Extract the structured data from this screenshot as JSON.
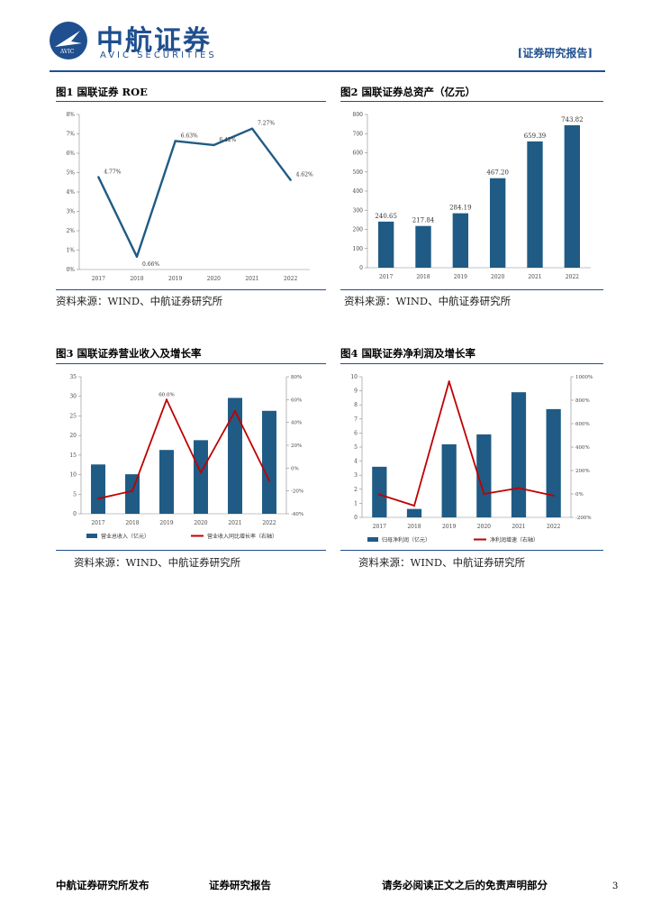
{
  "header": {
    "logo_cn": "中航证券",
    "logo_en": "AVIC SECURITIES",
    "logo_mark_text": "AVIC",
    "report_tag": "[证券研究报告]"
  },
  "figures": [
    {
      "title": "图1  国联证券 ROE",
      "source": "资料来源：WIND、中航证券研究所"
    },
    {
      "title": "图2  国联证券总资产（亿元）",
      "source": "资料来源：WIND、中航证券研究所"
    },
    {
      "title": "图3  国联证券营业收入及增长率",
      "source": "资料来源：WIND、中航证券研究所"
    },
    {
      "title": "图4  国联证券净利润及增长率",
      "source": "资料来源：WIND、中航证券研究所"
    }
  ],
  "chart_data": [
    {
      "type": "line",
      "x": [
        "2017",
        "2018",
        "2019",
        "2020",
        "2021",
        "2022"
      ],
      "series": [
        {
          "values": [
            4.77,
            0.66,
            6.63,
            6.42,
            7.27,
            4.62
          ],
          "labels": [
            "4.77%",
            "0.66%",
            "6.63%",
            "6.42%",
            "7.27%",
            "4.62%"
          ]
        }
      ],
      "ylim": [
        0,
        8
      ],
      "yticks": [
        "0%",
        "1%",
        "2%",
        "3%",
        "4%",
        "5%",
        "6%",
        "7%",
        "8%"
      ],
      "color": "#1f5b84"
    },
    {
      "type": "bar",
      "categories": [
        "2017",
        "2018",
        "2019",
        "2020",
        "2021",
        "2022"
      ],
      "values": [
        240.65,
        217.84,
        284.19,
        467.2,
        659.39,
        743.82
      ],
      "labels": [
        "240.65",
        "217.84",
        "284.19",
        "467.20",
        "659.39",
        "743.82"
      ],
      "ylim": [
        0,
        800
      ],
      "yticks": [
        "0",
        "100",
        "200",
        "300",
        "400",
        "500",
        "600",
        "700",
        "800"
      ],
      "color": "#1f5b84"
    },
    {
      "type": "bar",
      "categories": [
        "2017",
        "2018",
        "2019",
        "2020",
        "2021",
        "2022"
      ],
      "series": [
        {
          "name": "营业总收入（亿元）",
          "type": "bar",
          "axis": "left",
          "values": [
            12.6,
            10.1,
            16.3,
            18.8,
            29.6,
            26.3
          ],
          "color": "#1f5b84"
        },
        {
          "name": "营业收入同比增长率（右轴）",
          "type": "line",
          "axis": "right",
          "values": [
            -26.7,
            -20.0,
            60.0,
            -4.0,
            50.0,
            -11.0
          ],
          "color": "#c00000"
        }
      ],
      "labels": [
        "",
        "",
        "60.0%",
        "",
        "",
        ""
      ],
      "ylim": [
        0,
        35
      ],
      "y2lim": [
        -40,
        80
      ],
      "yticks": [
        "0",
        "5",
        "10",
        "15",
        "20",
        "25",
        "30",
        "35"
      ],
      "y2ticks": [
        "-40%",
        "-20%",
        "0%",
        "20%",
        "40%",
        "60%",
        "80%"
      ]
    },
    {
      "type": "bar",
      "categories": [
        "2017",
        "2018",
        "2019",
        "2020",
        "2021",
        "2022"
      ],
      "series": [
        {
          "name": "归母净利润（亿元）",
          "type": "bar",
          "axis": "left",
          "values": [
            3.6,
            0.6,
            5.2,
            5.9,
            8.9,
            7.7
          ],
          "color": "#1f5b84"
        },
        {
          "name": "净利润增速（右轴）",
          "type": "line",
          "axis": "right",
          "values": [
            -5,
            -100,
            960,
            0,
            50,
            -14
          ],
          "color": "#c00000"
        }
      ],
      "labels": [
        "",
        "",
        "",
        "",
        "",
        ""
      ],
      "ylim": [
        0,
        10
      ],
      "y2lim": [
        -200,
        1000
      ],
      "yticks": [
        "0",
        "1",
        "2",
        "3",
        "4",
        "5",
        "6",
        "7",
        "8",
        "9",
        "10"
      ],
      "y2ticks": [
        "-200%",
        "0%",
        "200%",
        "400%",
        "600%",
        "800%",
        "1000%"
      ]
    }
  ],
  "footer": {
    "left": "中航证券研究所发布",
    "center": "证券研究报告",
    "right": "请务必阅读正文之后的免责声明部分",
    "page": "3"
  }
}
